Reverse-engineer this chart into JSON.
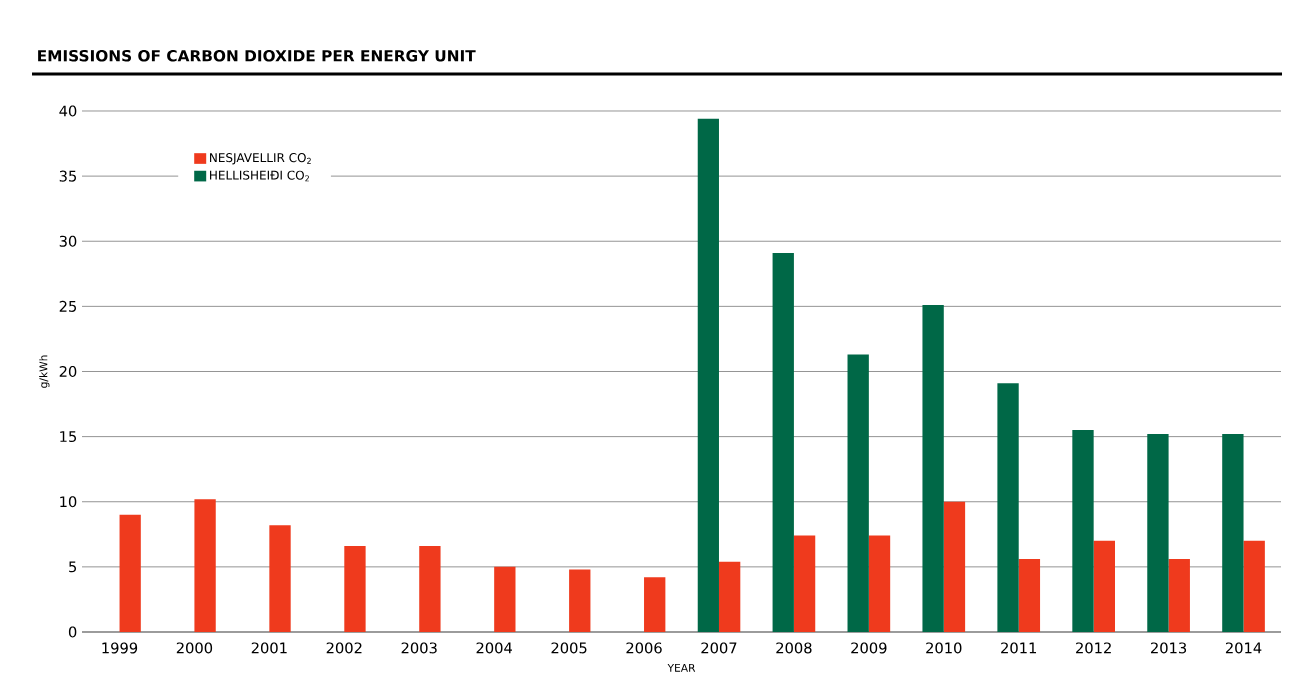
{
  "chart_data": {
    "type": "bar",
    "title": "EMISSIONS OF CARBON DIOXIDE PER ENERGY UNIT",
    "xlabel": "YEAR",
    "ylabel": "g/kWh",
    "categories": [
      "1999",
      "2000",
      "2001",
      "2002",
      "2003",
      "2004",
      "2005",
      "2006",
      "2007",
      "2008",
      "2009",
      "2010",
      "2011",
      "2012",
      "2013",
      "2014"
    ],
    "series": [
      {
        "name": "NESJAVELLIR CO$_{2}$",
        "color": "#ef3a1d",
        "values": [
          9.0,
          10.2,
          8.2,
          6.6,
          6.6,
          5.0,
          4.8,
          4.2,
          5.4,
          7.4,
          7.4,
          10.0,
          5.6,
          7.0,
          5.6,
          7.0
        ]
      },
      {
        "name": "HELLISHEIÐI CO$_{2}$",
        "color": "#006847",
        "values": [
          null,
          null,
          null,
          null,
          null,
          null,
          null,
          null,
          39.4,
          29.1,
          21.3,
          25.1,
          19.1,
          15.5,
          15.2,
          15.2
        ]
      }
    ],
    "ylim": [
      0,
      40
    ],
    "yticks": [
      0,
      5,
      10,
      15,
      20,
      25,
      30,
      35,
      40
    ],
    "grid": "y",
    "legend": "top left"
  }
}
